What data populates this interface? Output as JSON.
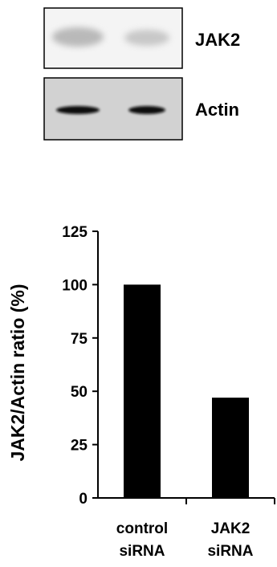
{
  "blots": [
    {
      "label": "JAK2",
      "style": "faint-bands",
      "band_color": "#b9b9b9",
      "background": "#f4f4f4"
    },
    {
      "label": "Actin",
      "style": "strong-bands",
      "band_color": "#111111",
      "background": "#d2d2d2"
    }
  ],
  "chart_data": {
    "type": "bar",
    "categories": [
      [
        "control",
        "siRNA"
      ],
      [
        "JAK2",
        "siRNA"
      ]
    ],
    "values": [
      100,
      47
    ],
    "ylabel": "JAK2/Actin ratio (%)",
    "xlabel": "",
    "title": "",
    "ylim": [
      0,
      125
    ],
    "yticks": [
      0,
      25,
      50,
      75,
      100,
      125
    ],
    "bar_color": "#000000",
    "grid": false
  }
}
